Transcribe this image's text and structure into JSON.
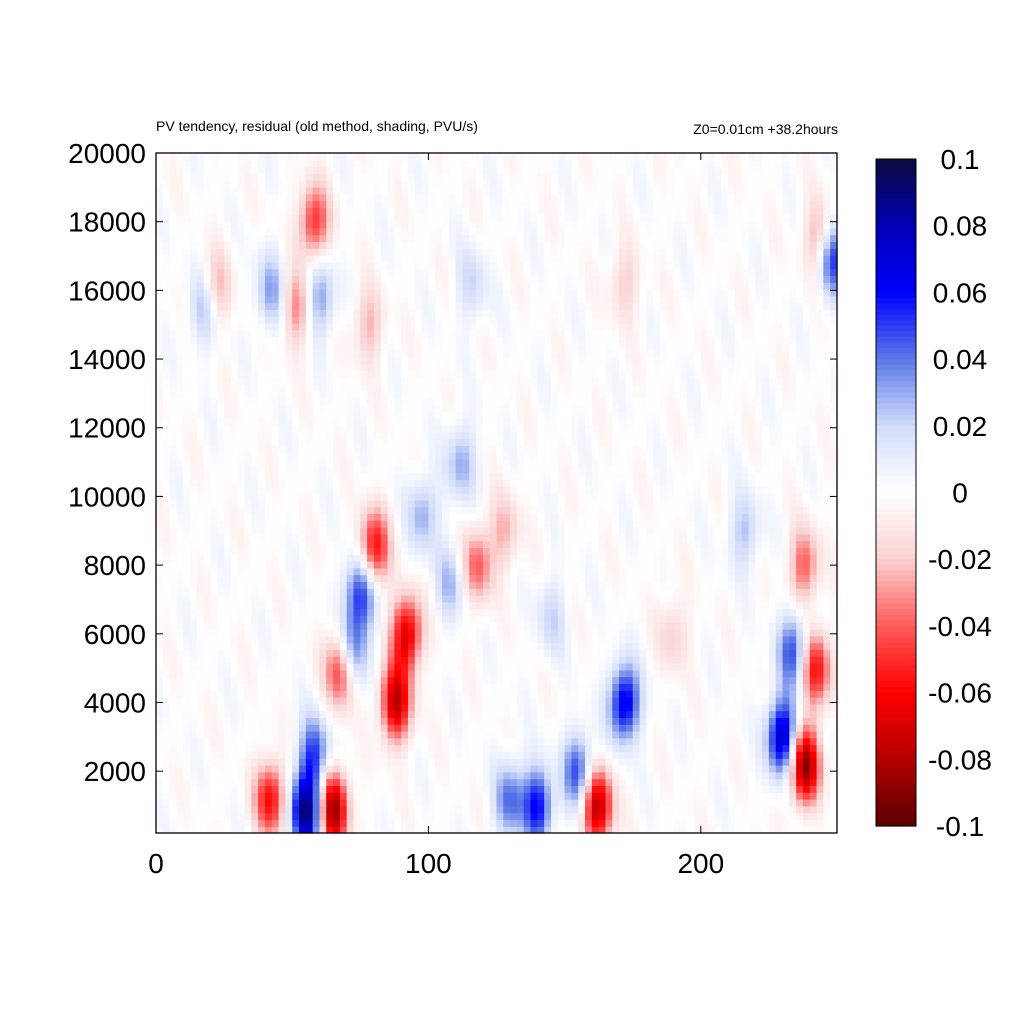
{
  "chart_data": {
    "type": "heatmap",
    "title": "PV tendency, residual (old method, shading, PVU/s)",
    "annotation_right": "Z0=0.01cm   +38.2hours",
    "xlim": [
      0,
      250
    ],
    "ylim": [
      200,
      20000
    ],
    "x_ticks": [
      0,
      100,
      200
    ],
    "y_ticks": [
      2000,
      4000,
      6000,
      8000,
      10000,
      12000,
      14000,
      16000,
      18000,
      20000
    ],
    "colorbar": {
      "range": [
        -0.1,
        0.1
      ],
      "ticks": [
        0.1,
        0.08,
        0.06,
        0.04,
        0.02,
        0,
        -0.02,
        -0.04,
        -0.06,
        -0.08,
        -0.1
      ],
      "tick_labels": [
        "0.1",
        "0.08",
        "0.06",
        "0.04",
        "0.02",
        "0",
        "-0.02",
        "-0.04",
        "-0.06",
        "-0.08",
        "-0.1"
      ],
      "colors": [
        "#0a0a3c",
        "#0000b4",
        "#0000ff",
        "#5a78e6",
        "#d2dcfa",
        "#ffffff",
        "#fad2d2",
        "#ff5a5a",
        "#ff0000",
        "#b40000",
        "#5a0000"
      ]
    },
    "grid": false,
    "features": [
      {
        "x": 75,
        "y": 7200,
        "value": 0.055
      },
      {
        "x": 72,
        "y": 5500,
        "value": 0.05
      },
      {
        "x": 92,
        "y": 6000,
        "value": -0.07
      },
      {
        "x": 80,
        "y": 8500,
        "value": -0.06
      },
      {
        "x": 68,
        "y": 5000,
        "value": -0.06
      },
      {
        "x": 88,
        "y": 4000,
        "value": -0.075
      },
      {
        "x": 55,
        "y": 800,
        "value": 0.09
      },
      {
        "x": 65,
        "y": 900,
        "value": -0.085
      },
      {
        "x": 42,
        "y": 1200,
        "value": -0.06
      },
      {
        "x": 58,
        "y": 2500,
        "value": 0.05
      },
      {
        "x": 172,
        "y": 4000,
        "value": 0.07
      },
      {
        "x": 162,
        "y": 1000,
        "value": -0.08
      },
      {
        "x": 155,
        "y": 2000,
        "value": 0.05
      },
      {
        "x": 140,
        "y": 1000,
        "value": 0.06
      },
      {
        "x": 130,
        "y": 1200,
        "value": 0.04
      },
      {
        "x": 230,
        "y": 3000,
        "value": 0.08
      },
      {
        "x": 238,
        "y": 2200,
        "value": -0.09
      },
      {
        "x": 242,
        "y": 5000,
        "value": -0.06
      },
      {
        "x": 234,
        "y": 5500,
        "value": 0.05
      },
      {
        "x": 238,
        "y": 8000,
        "value": -0.04
      },
      {
        "x": 216,
        "y": 9000,
        "value": 0.025
      },
      {
        "x": 112,
        "y": 11000,
        "value": 0.03
      },
      {
        "x": 118,
        "y": 8000,
        "value": -0.04
      },
      {
        "x": 98,
        "y": 9500,
        "value": 0.03
      },
      {
        "x": 108,
        "y": 7500,
        "value": 0.025
      },
      {
        "x": 128,
        "y": 9000,
        "value": -0.025
      },
      {
        "x": 145,
        "y": 6500,
        "value": 0.02
      },
      {
        "x": 190,
        "y": 6000,
        "value": -0.02
      },
      {
        "x": 58,
        "y": 18000,
        "value": -0.05
      },
      {
        "x": 52,
        "y": 15500,
        "value": -0.035
      },
      {
        "x": 60,
        "y": 15800,
        "value": 0.035
      },
      {
        "x": 42,
        "y": 16000,
        "value": 0.03
      },
      {
        "x": 22,
        "y": 16000,
        "value": -0.03
      },
      {
        "x": 18,
        "y": 15500,
        "value": 0.03
      },
      {
        "x": 78,
        "y": 15000,
        "value": -0.025
      },
      {
        "x": 248,
        "y": 17000,
        "value": 0.06
      },
      {
        "x": 244,
        "y": 17500,
        "value": -0.04
      },
      {
        "x": 116,
        "y": 16200,
        "value": 0.02
      },
      {
        "x": 172,
        "y": 16200,
        "value": -0.02
      }
    ]
  }
}
